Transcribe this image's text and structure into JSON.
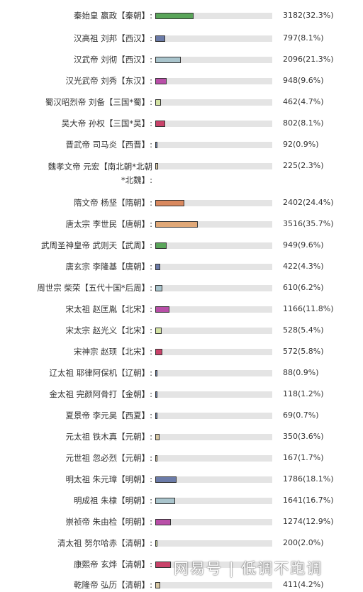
{
  "chart_data": {
    "type": "bar",
    "orientation": "horizontal",
    "max_value": 3516,
    "rows": [
      {
        "label": "秦始皇 嬴政【秦朝】:",
        "value": 3182,
        "value_text": "3182(32.3%)",
        "color": "#5aa55a"
      },
      {
        "label": "汉高祖 刘邦【西汉】:",
        "value": 797,
        "value_text": "797(8.1%)",
        "color": "#6b7ba8"
      },
      {
        "label": "汉武帝 刘彻【西汉】:",
        "value": 2096,
        "value_text": "2096(21.3%)",
        "color": "#a9c4cc"
      },
      {
        "label": "汉光武帝 刘秀【东汉】:",
        "value": 948,
        "value_text": "948(9.6%)",
        "color": "#b94fa8"
      },
      {
        "label": "蜀汉昭烈帝 刘备【三国*蜀】:",
        "value": 462,
        "value_text": "462(4.7%)",
        "color": "#d4e3a5"
      },
      {
        "label": "吴大帝 孙权【三国*吴】:",
        "value": 802,
        "value_text": "802(8.1%)",
        "color": "#c9436a"
      },
      {
        "label": "晋武帝 司马炎【西晋】:",
        "value": 92,
        "value_text": "92(0.9%)",
        "color": "#7a8fb8"
      },
      {
        "label": "魏孝文帝 元宏【南北朝*北朝*北魏】:",
        "value": 225,
        "value_text": "225(2.3%)",
        "color": "#d9c9a5"
      },
      {
        "label": "隋文帝 杨坚【隋朝】:",
        "value": 2402,
        "value_text": "2402(24.4%)",
        "color": "#d9895f"
      },
      {
        "label": "唐太宗 李世民【唐朝】:",
        "value": 3516,
        "value_text": "3516(35.7%)",
        "color": "#e0a878"
      },
      {
        "label": "武周圣神皇帝 武则天【武周】:",
        "value": 949,
        "value_text": "949(9.6%)",
        "color": "#5aa55a"
      },
      {
        "label": "唐玄宗 李隆基【唐朝】:",
        "value": 422,
        "value_text": "422(4.3%)",
        "color": "#6b7ba8"
      },
      {
        "label": "周世宗 柴荣【五代十国*后周】:",
        "value": 610,
        "value_text": "610(6.2%)",
        "color": "#a9c4cc"
      },
      {
        "label": "宋太祖 赵匡胤【北宋】:",
        "value": 1166,
        "value_text": "1166(11.8%)",
        "color": "#b94fa8"
      },
      {
        "label": "宋太宗 赵光义【北宋】:",
        "value": 528,
        "value_text": "528(5.4%)",
        "color": "#d4e3a5"
      },
      {
        "label": "宋神宗 赵顼【北宋】:",
        "value": 572,
        "value_text": "572(5.8%)",
        "color": "#c9436a"
      },
      {
        "label": "辽太祖 耶律阿保机【辽朝】:",
        "value": 88,
        "value_text": "88(0.9%)",
        "color": "#7a8fb8"
      },
      {
        "label": "金太祖 完颜阿骨打【金朝】:",
        "value": 118,
        "value_text": "118(1.2%)",
        "color": "#7a8fb8"
      },
      {
        "label": "夏景帝 李元昊【西夏】:",
        "value": 69,
        "value_text": "69(0.7%)",
        "color": "#7a8fb8"
      },
      {
        "label": "元太祖 铁木真【元朝】:",
        "value": 350,
        "value_text": "350(3.6%)",
        "color": "#d9c9a5"
      },
      {
        "label": "元世祖 忽必烈【元朝】:",
        "value": 167,
        "value_text": "167(1.7%)",
        "color": "#d9c9a5"
      },
      {
        "label": "明太祖 朱元璋【明朝】:",
        "value": 1786,
        "value_text": "1786(18.1%)",
        "color": "#6b7ba8"
      },
      {
        "label": "明成祖 朱棣【明朝】:",
        "value": 1641,
        "value_text": "1641(16.7%)",
        "color": "#a9c4cc"
      },
      {
        "label": "崇祯帝 朱由检【明朝】:",
        "value": 1274,
        "value_text": "1274(12.9%)",
        "color": "#b94fa8"
      },
      {
        "label": "清太祖 努尔哈赤【清朝】:",
        "value": 200,
        "value_text": "200(2.0%)",
        "color": "#d4e3a5"
      },
      {
        "label": "康熙帝 玄烨【清朝】:",
        "value": 1282,
        "value_text": "",
        "color": "#c9436a"
      },
      {
        "label": "乾隆帝 弘历【清朝】:",
        "value": 411,
        "value_text": "411(4.2%)",
        "color": "#d9c9a5"
      }
    ]
  },
  "watermark": "网易号 | 低调不跑调"
}
